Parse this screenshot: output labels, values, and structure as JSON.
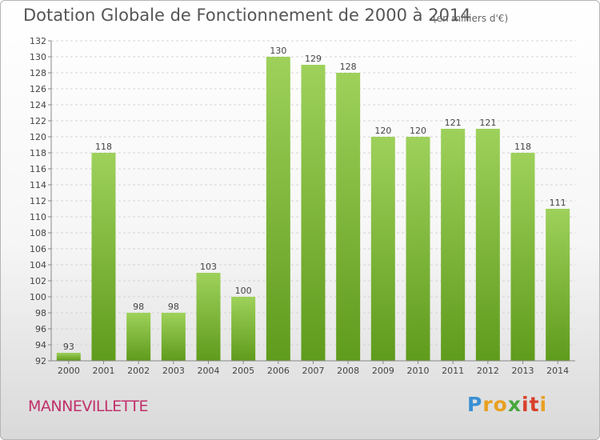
{
  "header": {
    "title": "Dotation Globale de Fonctionnement de 2000 à 2014",
    "subtitle": "(en milliers d'€)"
  },
  "footer": {
    "commune": "MANNEVILLETTE",
    "logo_letters": [
      "P",
      "r",
      "o",
      "x",
      "i",
      "t",
      "i"
    ],
    "logo_colors": [
      "#3a8fd4",
      "#e8a020",
      "#e8a020",
      "#46a83c",
      "#d8402c",
      "#d8402c",
      "#e8a020"
    ]
  },
  "colors": {
    "bar_light": "#9ed15b",
    "bar_dark": "#5f9b1c",
    "grid": "#d4d4d4",
    "axis": "#888888"
  },
  "chart_data": {
    "type": "bar",
    "title": "Dotation Globale de Fonctionnement de 2000 à 2014",
    "subtitle": "(en milliers d'€)",
    "xlabel": "",
    "ylabel": "",
    "categories": [
      "2000",
      "2001",
      "2002",
      "2003",
      "2004",
      "2005",
      "2006",
      "2007",
      "2008",
      "2009",
      "2010",
      "2011",
      "2012",
      "2013",
      "2014"
    ],
    "values": [
      93,
      118,
      98,
      98,
      103,
      100,
      130,
      129,
      128,
      120,
      120,
      121,
      121,
      118,
      111
    ],
    "ylim": [
      92,
      132
    ],
    "ytick_step": 2,
    "grid": true,
    "data_labels": true
  }
}
